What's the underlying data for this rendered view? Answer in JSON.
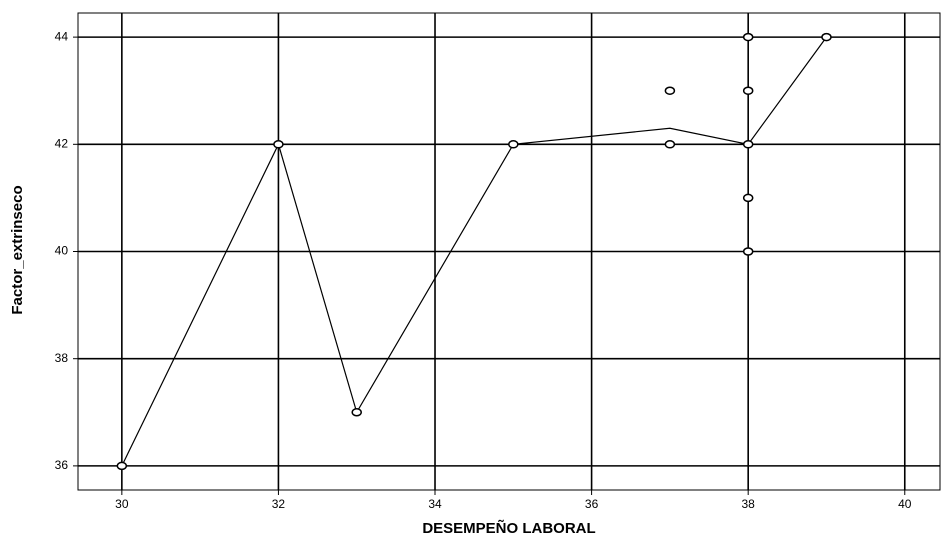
{
  "chart_data": {
    "type": "scatter",
    "xlabel": "DESEMPEÑO LABORAL",
    "ylabel": "Factor_extrinseco",
    "xlim": [
      29.44,
      40.45
    ],
    "ylim": [
      35.55,
      44.45
    ],
    "xticks": [
      30,
      32,
      34,
      36,
      38,
      40
    ],
    "yticks": [
      36,
      38,
      40,
      42,
      44
    ],
    "grid": true,
    "color": "#000000",
    "points": {
      "x": [
        30,
        32,
        33,
        35,
        37,
        37,
        38,
        38,
        38,
        38,
        38,
        39
      ],
      "y": [
        36,
        42,
        37,
        42,
        43,
        42,
        44,
        43,
        42,
        41,
        40,
        44
      ]
    },
    "line": {
      "x": [
        30,
        32,
        33,
        35,
        37,
        38,
        39
      ],
      "y": [
        36,
        42,
        37,
        42,
        42.3,
        42,
        44
      ]
    }
  }
}
